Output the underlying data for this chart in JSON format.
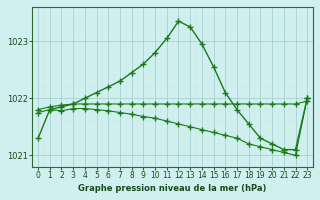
{
  "title": "Graphe pression niveau de la mer (hPa)",
  "x": [
    0,
    1,
    2,
    3,
    4,
    5,
    6,
    7,
    8,
    9,
    10,
    11,
    12,
    13,
    14,
    15,
    16,
    17,
    18,
    19,
    20,
    21,
    22,
    23
  ],
  "line1_y": [
    1021.3,
    1021.8,
    1021.85,
    1021.9,
    1022.0,
    1022.1,
    1022.2,
    1022.3,
    1022.45,
    1022.6,
    1022.8,
    1023.05,
    1023.35,
    1023.25,
    1022.95,
    1022.55,
    1022.1,
    1021.8,
    1021.55,
    1021.3,
    1021.2,
    1021.1,
    1021.1,
    1022.0
  ],
  "line2_y": [
    1021.8,
    1021.85,
    1021.88,
    1021.9,
    1021.9,
    1021.9,
    1021.9,
    1021.9,
    1021.9,
    1021.9,
    1021.9,
    1021.9,
    1021.9,
    1021.9,
    1021.9,
    1021.9,
    1021.9,
    1021.9,
    1021.9,
    1021.9,
    1021.9,
    1021.9,
    1021.9,
    1021.95
  ],
  "line3_y": [
    1021.75,
    1021.8,
    1021.78,
    1021.82,
    1021.82,
    1021.8,
    1021.78,
    1021.75,
    1021.72,
    1021.68,
    1021.65,
    1021.6,
    1021.55,
    1021.5,
    1021.45,
    1021.4,
    1021.35,
    1021.3,
    1021.2,
    1021.15,
    1021.1,
    1021.05,
    1021.0,
    1022.0
  ],
  "line_color": "#1a7a1a",
  "bg_color": "#d0f0f0",
  "ylim": [
    1020.8,
    1023.6
  ],
  "yticks": [
    1021,
    1022,
    1023
  ],
  "xlim": [
    -0.5,
    23.5
  ],
  "xticks": [
    0,
    1,
    2,
    3,
    4,
    5,
    6,
    7,
    8,
    9,
    10,
    11,
    12,
    13,
    14,
    15,
    16,
    17,
    18,
    19,
    20,
    21,
    22,
    23
  ]
}
